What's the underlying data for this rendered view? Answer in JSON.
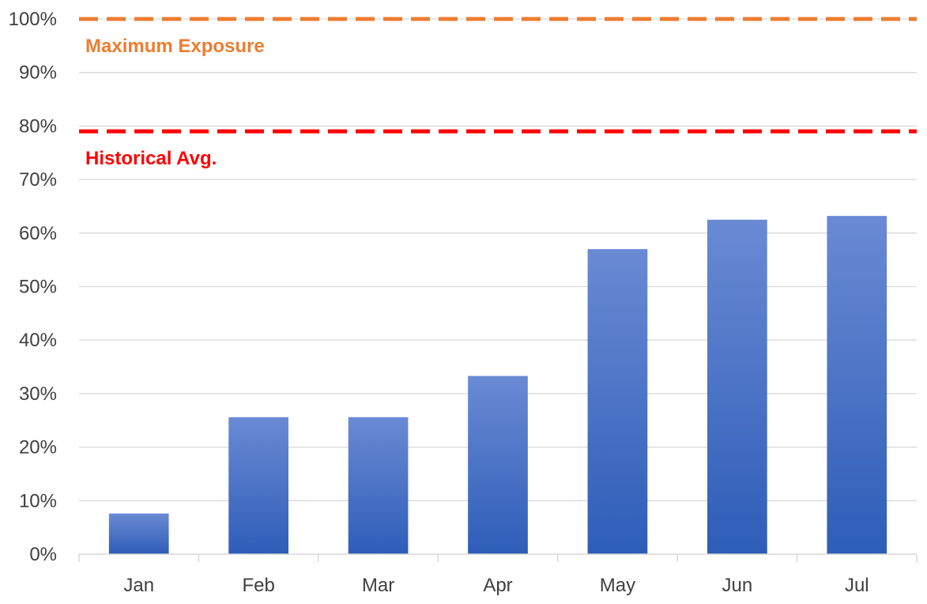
{
  "chart_data": {
    "type": "bar",
    "title": "",
    "xlabel": "",
    "ylabel": "",
    "categories": [
      "Jan",
      "Feb",
      "Mar",
      "Apr",
      "May",
      "Jun",
      "Jul"
    ],
    "values": [
      7.6,
      25.6,
      25.6,
      33.3,
      57.0,
      62.5,
      63.2
    ],
    "ylim": [
      0,
      100
    ],
    "yticks": [
      0,
      10,
      20,
      30,
      40,
      50,
      60,
      70,
      80,
      90,
      100
    ],
    "ytick_format": "%",
    "grid": true,
    "legend": "none",
    "bar_color_top": "#6A8AD4",
    "bar_color_bottom": "#2E5DB8",
    "reference_lines": [
      {
        "label": "Maximum Exposure",
        "value": 100,
        "color": "#ED7D31",
        "style": "dashed"
      },
      {
        "label": "Historical Avg.",
        "value": 79,
        "color": "#FF0000",
        "style": "dashed"
      }
    ]
  }
}
